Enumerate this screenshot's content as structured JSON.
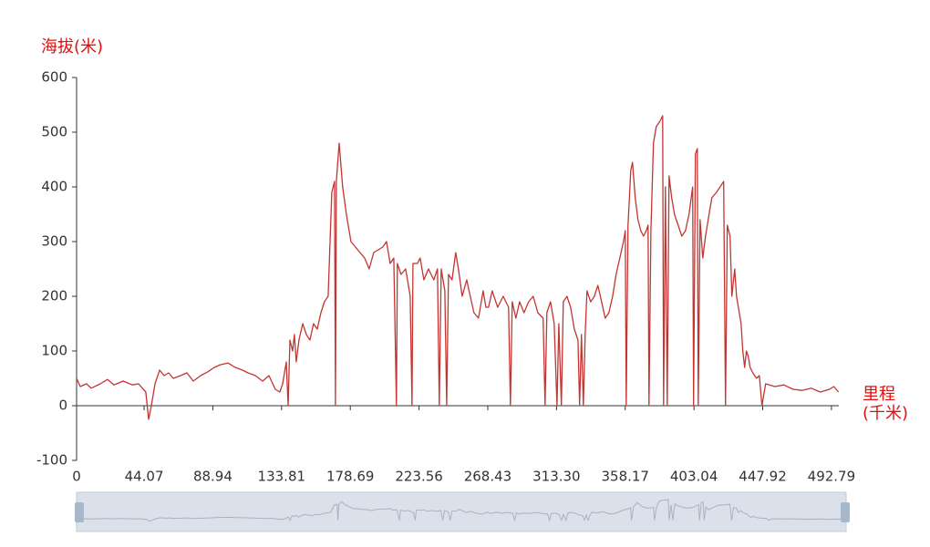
{
  "chart_data": {
    "type": "line",
    "y_label": "海拔(米)",
    "x_label": [
      "里程",
      "(千米)"
    ],
    "color": "#c23531",
    "x": [
      0,
      2.4,
      6.5,
      9.5,
      15.5,
      20.2,
      24.4,
      30.4,
      36.3,
      40.5,
      43.5,
      45.2,
      47.0,
      48.8,
      51.2,
      54.2,
      57.1,
      60.1,
      63.1,
      67.9,
      72.0,
      76.2,
      81.0,
      85.7,
      89.9,
      94.0,
      98.8,
      103.6,
      108.3,
      111.9,
      116.7,
      121.4,
      125.6,
      129.7,
      132.7,
      134.5,
      136.9,
      138.1,
      139.3,
      141.0,
      142.2,
      143.4,
      145.2,
      147.6,
      150.0,
      152.3,
      154.7,
      157.1,
      159.5,
      161.8,
      164.2,
      166.6,
      168.4,
      169.0,
      169.6,
      171.4,
      173.7,
      176.1,
      179.1,
      182.1,
      185.0,
      188.0,
      191.0,
      194.0,
      197.0,
      199.9,
      202.3,
      204.7,
      207.1,
      208.8,
      209.4,
      211.8,
      214.8,
      217.8,
      219.0,
      219.6,
      222.5,
      224.3,
      226.7,
      229.7,
      233.2,
      235.6,
      236.8,
      238.0,
      240.4,
      241.6,
      242.8,
      245.1,
      247.5,
      249.3,
      251.7,
      254.7,
      257.0,
      259.4,
      262.4,
      265.4,
      267.2,
      268.9,
      271.3,
      274.9,
      278.5,
      282.0,
      283.2,
      284.4,
      286.8,
      289.2,
      292.1,
      295.1,
      298.1,
      301.1,
      304.6,
      305.8,
      307.0,
      309.4,
      311.8,
      313.6,
      314.8,
      316.5,
      317.7,
      320.1,
      322.5,
      324.9,
      327.3,
      328.4,
      329.6,
      330.8,
      332.0,
      333.2,
      335.6,
      338.0,
      340.3,
      342.7,
      345.1,
      347.5,
      349.9,
      352.2,
      354.6,
      357.0,
      358.2,
      358.8,
      360.0,
      361.8,
      362.9,
      364.7,
      366.5,
      368.3,
      370.1,
      371.9,
      373.1,
      373.7,
      374.9,
      376.6,
      378.4,
      380.8,
      382.6,
      383.2,
      384.4,
      385.6,
      386.8,
      388.5,
      390.3,
      392.7,
      395.1,
      397.5,
      399.8,
      402.2,
      402.8,
      404.0,
      405.2,
      405.8,
      407.0,
      408.8,
      410.6,
      412.9,
      414.7,
      417.7,
      420.1,
      422.4,
      423.6,
      424.8,
      426.6,
      427.8,
      429.6,
      430.8,
      432.0,
      433.8,
      434.9,
      436.1,
      437.3,
      438.5,
      439.7,
      441.5,
      443.9,
      445.7,
      447.4,
      449.8,
      455.8,
      461.7,
      467.7,
      473.6,
      479.6,
      485.5,
      491.5,
      494.4,
      497.4
    ],
    "values": [
      50,
      35,
      40,
      32,
      40,
      48,
      38,
      45,
      38,
      40,
      30,
      25,
      -25,
      0,
      40,
      65,
      55,
      60,
      50,
      55,
      60,
      45,
      55,
      62,
      70,
      75,
      78,
      70,
      65,
      60,
      55,
      45,
      55,
      30,
      25,
      40,
      80,
      0,
      120,
      100,
      130,
      80,
      120,
      150,
      130,
      120,
      150,
      140,
      170,
      190,
      200,
      390,
      410,
      0,
      410,
      480,
      400,
      350,
      300,
      290,
      280,
      270,
      250,
      280,
      285,
      290,
      300,
      260,
      270,
      0,
      260,
      240,
      250,
      200,
      0,
      260,
      260,
      270,
      230,
      250,
      230,
      250,
      0,
      250,
      210,
      0,
      240,
      230,
      280,
      250,
      200,
      230,
      200,
      170,
      160,
      210,
      180,
      180,
      210,
      180,
      200,
      180,
      0,
      190,
      160,
      190,
      170,
      190,
      200,
      170,
      160,
      0,
      170,
      190,
      150,
      0,
      150,
      0,
      190,
      200,
      180,
      140,
      120,
      0,
      130,
      0,
      130,
      210,
      190,
      200,
      220,
      190,
      160,
      170,
      200,
      240,
      270,
      300,
      320,
      0,
      330,
      430,
      445,
      380,
      340,
      320,
      310,
      320,
      330,
      0,
      320,
      480,
      510,
      520,
      530,
      0,
      400,
      0,
      420,
      380,
      350,
      330,
      310,
      320,
      350,
      400,
      0,
      460,
      470,
      0,
      340,
      270,
      310,
      350,
      380,
      390,
      400,
      410,
      0,
      330,
      310,
      200,
      250,
      200,
      180,
      150,
      100,
      70,
      100,
      90,
      70,
      60,
      50,
      55,
      0,
      40,
      35,
      38,
      30,
      28,
      32,
      25,
      30,
      35,
      25
    ],
    "xlim": [
      0,
      497.6
    ],
    "xticks": [
      0,
      44.07,
      88.94,
      133.81,
      178.69,
      223.56,
      268.43,
      {
        "value": 313.3,
        "label": "313.30"
      },
      358.17,
      403.04,
      447.92,
      492.79
    ],
    "ylim": [
      -100,
      600
    ],
    "yticks": [
      -100,
      0,
      100,
      200,
      300,
      400,
      500,
      600
    ]
  }
}
